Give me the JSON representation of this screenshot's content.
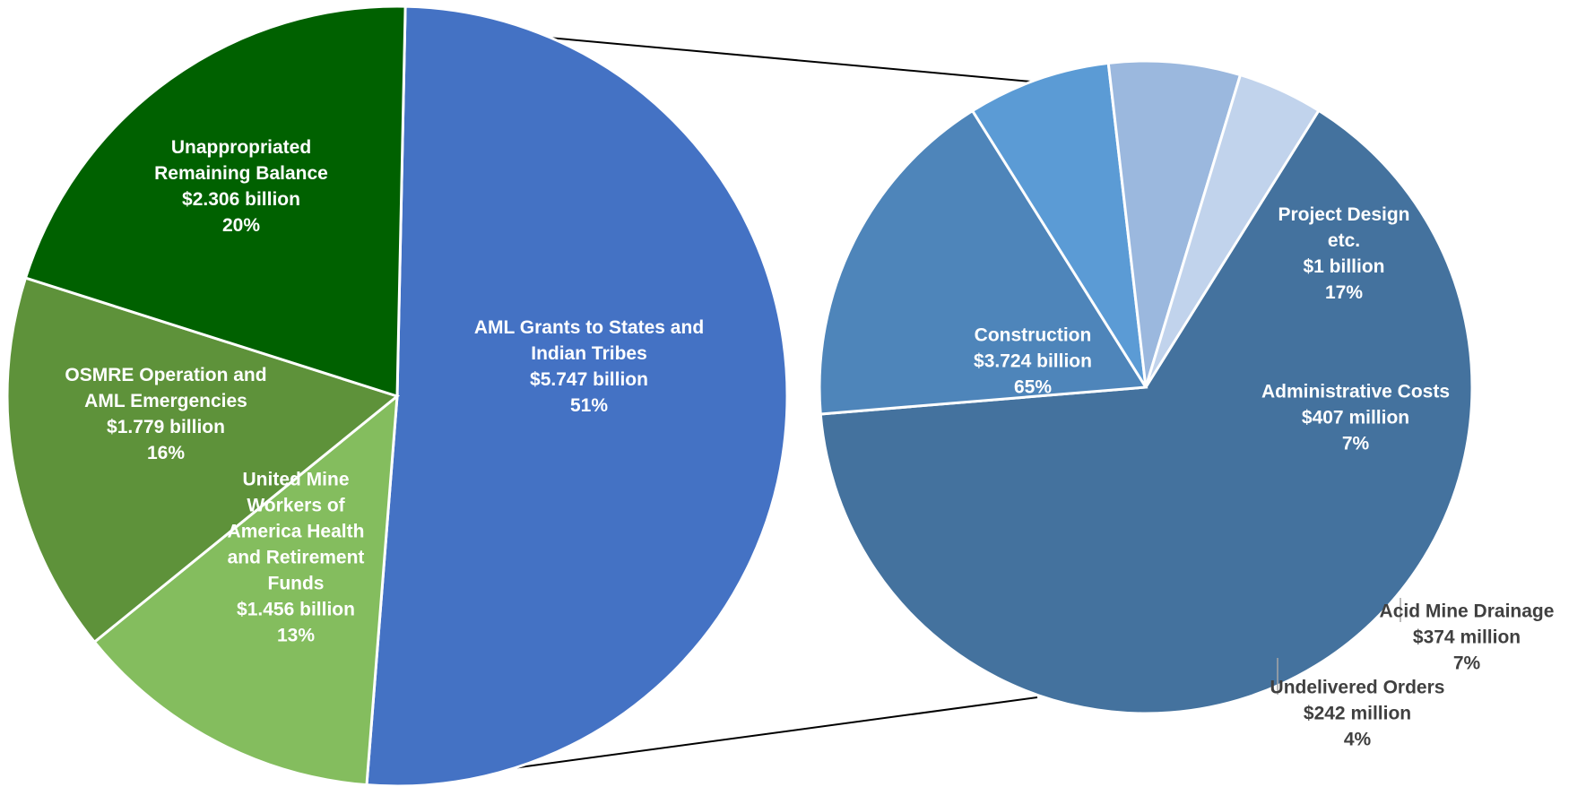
{
  "chart_data": [
    {
      "type": "pie",
      "title": "",
      "slices": [
        {
          "label": [
            "AML Grants to States and",
            "Indian Tribes"
          ],
          "amount": "$5.747 billion",
          "value": 5.747,
          "percent": "51%",
          "color": "#4472C4"
        },
        {
          "label": [
            "United Mine",
            "Workers of",
            "America Health",
            "and Retirement",
            "Funds"
          ],
          "amount": "$1.456 billion",
          "value": 1.456,
          "percent": "13%",
          "color": "#84BD5E"
        },
        {
          "label": [
            "OSMRE Operation and",
            "AML Emergencies"
          ],
          "amount": "$1.779 billion",
          "value": 1.779,
          "percent": "16%",
          "color": "#5E923A"
        },
        {
          "label": [
            "Unappropriated",
            "Remaining Balance"
          ],
          "amount": "$2.306 billion",
          "value": 2.306,
          "percent": "20%",
          "color": "#006100"
        }
      ]
    },
    {
      "type": "pie",
      "title": "",
      "breakdown_of": "AML Grants to States and Indian Tribes",
      "slices": [
        {
          "label": [
            "Construction"
          ],
          "amount": "$3.724 billion",
          "value": 3.724,
          "percent": "65%",
          "color": "#44729E"
        },
        {
          "label": [
            "Project Design",
            "etc."
          ],
          "amount": "$1 billion",
          "value": 1.0,
          "percent": "17%",
          "color": "#4E85BA"
        },
        {
          "label": [
            "Administrative Costs"
          ],
          "amount": "$407 million",
          "value": 0.407,
          "percent": "7%",
          "color": "#5B9BD5"
        },
        {
          "label": [
            "Acid Mine Drainage"
          ],
          "amount": "$374 million",
          "value": 0.374,
          "percent": "7%",
          "color": "#9BB8DE"
        },
        {
          "label": [
            "Undelivered Orders"
          ],
          "amount": "$242 million",
          "value": 0.242,
          "percent": "4%",
          "color": "#C1D3EC"
        }
      ]
    }
  ]
}
